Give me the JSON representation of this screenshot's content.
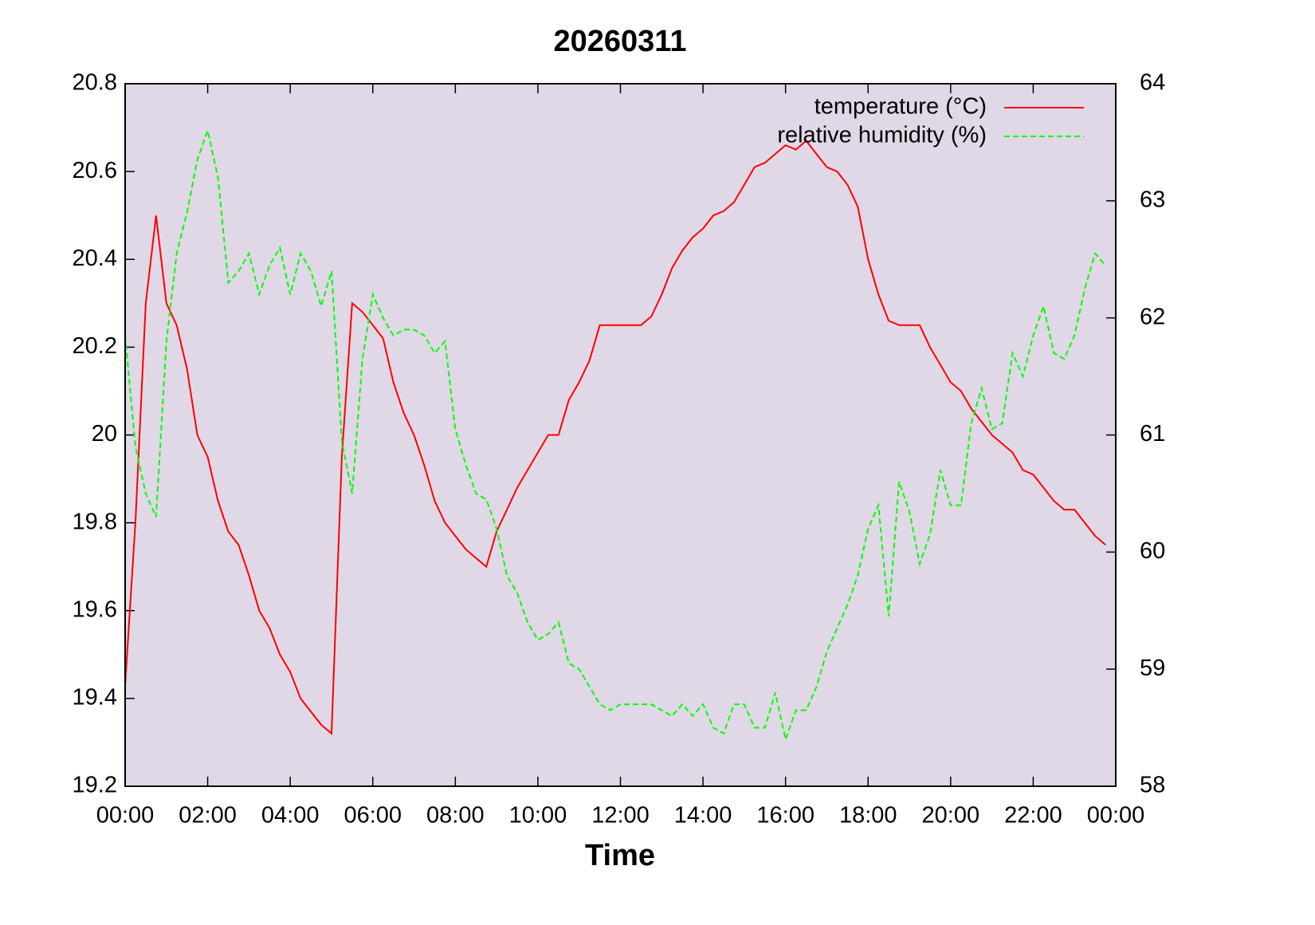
{
  "chart_data": {
    "type": "line",
    "title": "20260311",
    "x_label": "Time",
    "x": [
      0,
      0.25,
      0.5,
      0.75,
      1,
      1.25,
      1.5,
      1.75,
      2,
      2.25,
      2.5,
      2.75,
      3,
      3.25,
      3.5,
      3.75,
      4,
      4.25,
      4.5,
      4.75,
      5,
      5.25,
      5.5,
      5.75,
      6,
      6.25,
      6.5,
      6.75,
      7,
      7.25,
      7.5,
      7.75,
      8,
      8.25,
      8.5,
      8.75,
      9,
      9.25,
      9.5,
      9.75,
      10,
      10.25,
      10.5,
      10.75,
      11,
      11.25,
      11.5,
      11.75,
      12,
      12.25,
      12.5,
      12.75,
      13,
      13.25,
      13.5,
      13.75,
      14,
      14.25,
      14.5,
      14.75,
      15,
      15.25,
      15.5,
      15.75,
      16,
      16.25,
      16.5,
      16.75,
      17,
      17.25,
      17.5,
      17.75,
      18,
      18.25,
      18.5,
      18.75,
      19,
      19.25,
      19.5,
      19.75,
      20,
      20.25,
      20.5,
      20.75,
      21,
      21.25,
      21.5,
      21.75,
      22,
      22.25,
      22.5,
      22.75,
      23,
      23.25,
      23.5,
      23.75
    ],
    "series": [
      {
        "name": "temperature (°C)",
        "color": "#ff0000",
        "dashed": false,
        "axis": "y",
        "values": [
          19.43,
          19.8,
          20.3,
          20.5,
          20.3,
          20.25,
          20.15,
          20.0,
          19.95,
          19.85,
          19.78,
          19.75,
          19.68,
          19.6,
          19.56,
          19.5,
          19.46,
          19.4,
          19.37,
          19.34,
          19.32,
          19.95,
          20.3,
          20.28,
          20.25,
          20.22,
          20.12,
          20.05,
          20.0,
          19.93,
          19.85,
          19.8,
          19.77,
          19.74,
          19.72,
          19.7,
          19.78,
          19.83,
          19.88,
          19.92,
          19.96,
          20.0,
          20.0,
          20.08,
          20.12,
          20.17,
          20.25,
          20.25,
          20.25,
          20.25,
          20.25,
          20.27,
          20.32,
          20.38,
          20.42,
          20.45,
          20.47,
          20.5,
          20.51,
          20.53,
          20.57,
          20.61,
          20.62,
          20.64,
          20.66,
          20.65,
          20.67,
          20.64,
          20.61,
          20.6,
          20.57,
          20.52,
          20.4,
          20.32,
          20.26,
          20.25,
          20.25,
          20.25,
          20.2,
          20.16,
          20.12,
          20.1,
          20.06,
          20.03,
          20.0,
          19.98,
          19.96,
          19.92,
          19.91,
          19.88,
          19.85,
          19.83,
          19.83,
          19.8,
          19.77,
          19.75
        ]
      },
      {
        "name": "relative humidity (%)",
        "color": "#00ff00",
        "dashed": true,
        "axis": "y2",
        "values": [
          61.85,
          60.9,
          60.5,
          60.3,
          61.8,
          62.55,
          62.9,
          63.35,
          63.6,
          63.2,
          62.3,
          62.4,
          62.55,
          62.2,
          62.45,
          62.6,
          62.2,
          62.55,
          62.4,
          62.1,
          62.4,
          60.95,
          60.5,
          61.65,
          62.2,
          62.0,
          61.85,
          61.9,
          61.9,
          61.85,
          61.7,
          61.8,
          61.05,
          60.75,
          60.5,
          60.45,
          60.2,
          59.8,
          59.65,
          59.4,
          59.25,
          59.3,
          59.4,
          59.05,
          59.0,
          58.85,
          58.7,
          58.65,
          58.7,
          58.7,
          58.7,
          58.7,
          58.65,
          58.6,
          58.7,
          58.6,
          58.7,
          58.5,
          58.45,
          58.7,
          58.7,
          58.5,
          58.5,
          58.8,
          58.4,
          58.65,
          58.65,
          58.85,
          59.15,
          59.35,
          59.55,
          59.8,
          60.2,
          60.4,
          59.45,
          60.6,
          60.35,
          59.9,
          60.15,
          60.7,
          60.4,
          60.4,
          61.1,
          61.4,
          61.05,
          61.1,
          61.7,
          61.5,
          61.85,
          62.1,
          61.7,
          61.65,
          61.85,
          62.25,
          62.55,
          62.45
        ]
      }
    ],
    "xlim": [
      0,
      24
    ],
    "xticks": [
      {
        "value": 0,
        "label": "00:00"
      },
      {
        "value": 2,
        "label": "02:00"
      },
      {
        "value": 4,
        "label": "04:00"
      },
      {
        "value": 6,
        "label": "06:00"
      },
      {
        "value": 8,
        "label": "08:00"
      },
      {
        "value": 10,
        "label": "10:00"
      },
      {
        "value": 12,
        "label": "12:00"
      },
      {
        "value": 14,
        "label": "14:00"
      },
      {
        "value": 16,
        "label": "16:00"
      },
      {
        "value": 18,
        "label": "18:00"
      },
      {
        "value": 20,
        "label": "20:00"
      },
      {
        "value": 22,
        "label": "22:00"
      },
      {
        "value": 24,
        "label": "00:00"
      }
    ],
    "ylim": [
      19.2,
      20.8
    ],
    "yticks": [
      19.2,
      19.4,
      19.6,
      19.8,
      20,
      20.2,
      20.4,
      20.6,
      20.8
    ],
    "y2lim": [
      58,
      64
    ],
    "y2ticks": [
      58,
      59,
      60,
      61,
      62,
      63,
      64
    ],
    "legend": "top-right",
    "background": "#e0d8e6"
  }
}
